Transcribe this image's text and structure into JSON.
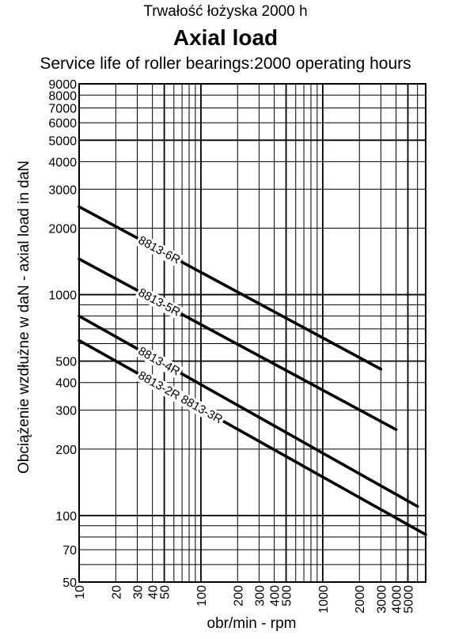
{
  "chart_data": {
    "type": "line",
    "title": "Trwałość łożyska 2000 h",
    "subtitle": "Axial load",
    "subtitle2": "Service life of roller bearings:2000 operating hours",
    "xlabel": "obr/min - rpm",
    "ylabel": "Obciążenie wzdłużne w daN - axial load in daN",
    "x_scale": "log",
    "y_scale": "log",
    "xlim": [
      10,
      7000
    ],
    "ylim": [
      50,
      9000
    ],
    "grid": true,
    "x_ticks": [
      "10",
      "20",
      "30",
      "40",
      "50",
      "100",
      "200",
      "300",
      "400",
      "500",
      "1000",
      "2000",
      "3000",
      "4000",
      "5000"
    ],
    "y_ticks": [
      "50",
      "70",
      "100",
      "200",
      "300",
      "400",
      "500",
      "1000",
      "2000",
      "3000",
      "4000",
      "5000",
      "6000",
      "7000",
      "8000",
      "9000"
    ],
    "series": [
      {
        "name": "8813-6R",
        "x": [
          10,
          3000
        ],
        "y": [
          2500,
          460
        ]
      },
      {
        "name": "8813-5R",
        "x": [
          10,
          4000
        ],
        "y": [
          1450,
          245
        ]
      },
      {
        "name": "8813-4R",
        "x": [
          10,
          6000
        ],
        "y": [
          800,
          110
        ]
      },
      {
        "name": "8813-2R 8813-3R",
        "x": [
          10,
          7000
        ],
        "y": [
          620,
          82
        ]
      }
    ]
  }
}
